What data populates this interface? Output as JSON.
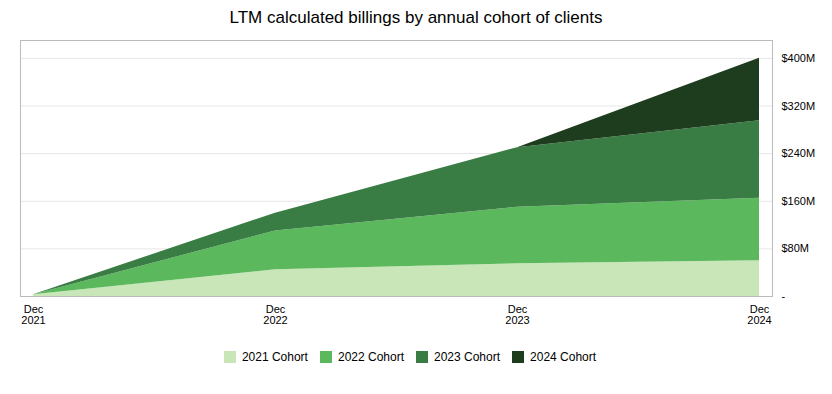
{
  "chart_data": {
    "type": "area",
    "title": "LTM calculated billings by annual cohort of clients",
    "categories": [
      "Dec\n2021",
      "Dec\n2022",
      "Dec\n2023",
      "Dec\n2024"
    ],
    "series": [
      {
        "name": "2021 Cohort",
        "color": "#c8e6b8",
        "values": [
          3,
          45,
          55,
          60
        ]
      },
      {
        "name": "2022 Cohort",
        "color": "#5cb85c",
        "values": [
          0,
          65,
          95,
          105
        ]
      },
      {
        "name": "2023 Cohort",
        "color": "#3a7d44",
        "values": [
          0,
          30,
          100,
          130
        ]
      },
      {
        "name": "2024 Cohort",
        "color": "#1e3d1e",
        "values": [
          0,
          0,
          0,
          105
        ]
      }
    ],
    "stacked": true,
    "ylim": [
      0,
      430
    ],
    "yticks": [
      {
        "value": 0,
        "label": "-"
      },
      {
        "value": 80,
        "label": "$80M"
      },
      {
        "value": 160,
        "label": "$160M"
      },
      {
        "value": 240,
        "label": "$240M"
      },
      {
        "value": 320,
        "label": "$320M"
      },
      {
        "value": 400,
        "label": "$400M"
      }
    ],
    "grid": true,
    "legend": "bottom"
  }
}
